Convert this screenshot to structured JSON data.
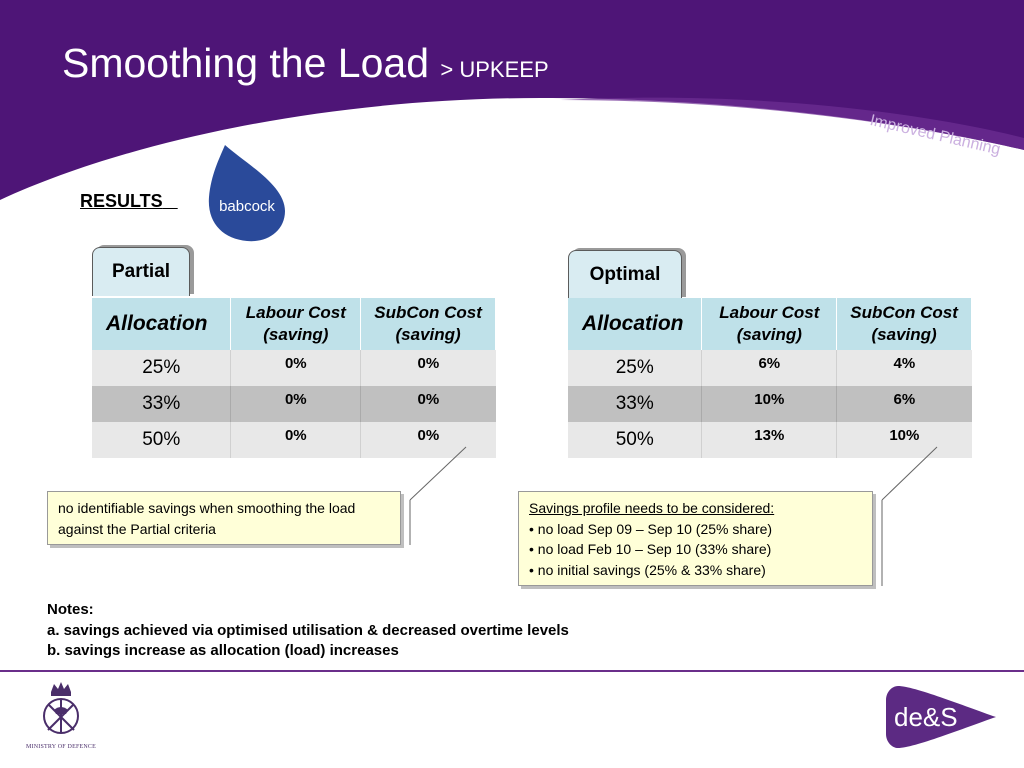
{
  "header": {
    "title": "Smoothing the Load",
    "subtitle": "> UPKEEP",
    "tagline": "Improved Planning"
  },
  "results_label": "RESULTS",
  "logos": {
    "babcock": "babcock",
    "des": "de&S",
    "mod": "MINISTRY OF DEFENCE"
  },
  "colors": {
    "header_purple": "#4e1577",
    "header_shade": "#6d2f94",
    "table_header": "#bfe1e9",
    "row_light": "#e8e8e8",
    "row_dark": "#c0c0c0",
    "note_bg": "#ffffd8",
    "des_purple": "#5c2a83"
  },
  "partial": {
    "tab": "Partial",
    "headers": [
      "Allocation",
      "Labour Cost (saving)",
      "SubCon Cost (saving)"
    ],
    "rows": [
      {
        "allocation": "25%",
        "labour": "0%",
        "subcon": "0%"
      },
      {
        "allocation": "33%",
        "labour": "0%",
        "subcon": "0%"
      },
      {
        "allocation": "50%",
        "labour": "0%",
        "subcon": "0%"
      }
    ],
    "note": "no identifiable savings when smoothing the load against the Partial criteria"
  },
  "optimal": {
    "tab": "Optimal",
    "headers": [
      "Allocation",
      "Labour Cost (saving)",
      "SubCon Cost (saving)"
    ],
    "rows": [
      {
        "allocation": "25%",
        "labour": "6%",
        "subcon": "4%"
      },
      {
        "allocation": "33%",
        "labour": "10%",
        "subcon": "6%"
      },
      {
        "allocation": "50%",
        "labour": "13%",
        "subcon": "10%"
      }
    ],
    "note": {
      "heading": "Savings profile needs to be considered:",
      "bullets": [
        "• no load Sep 09 – Sep 10 (25% share)",
        "• no load Feb 10 – Sep 10 (33% share)",
        "• no initial savings (25% & 33% share)"
      ]
    }
  },
  "notes": {
    "heading": "Notes:",
    "items": [
      "a. savings achieved via optimised utilisation & decreased overtime levels",
      "b. savings increase as allocation (load) increases"
    ]
  }
}
